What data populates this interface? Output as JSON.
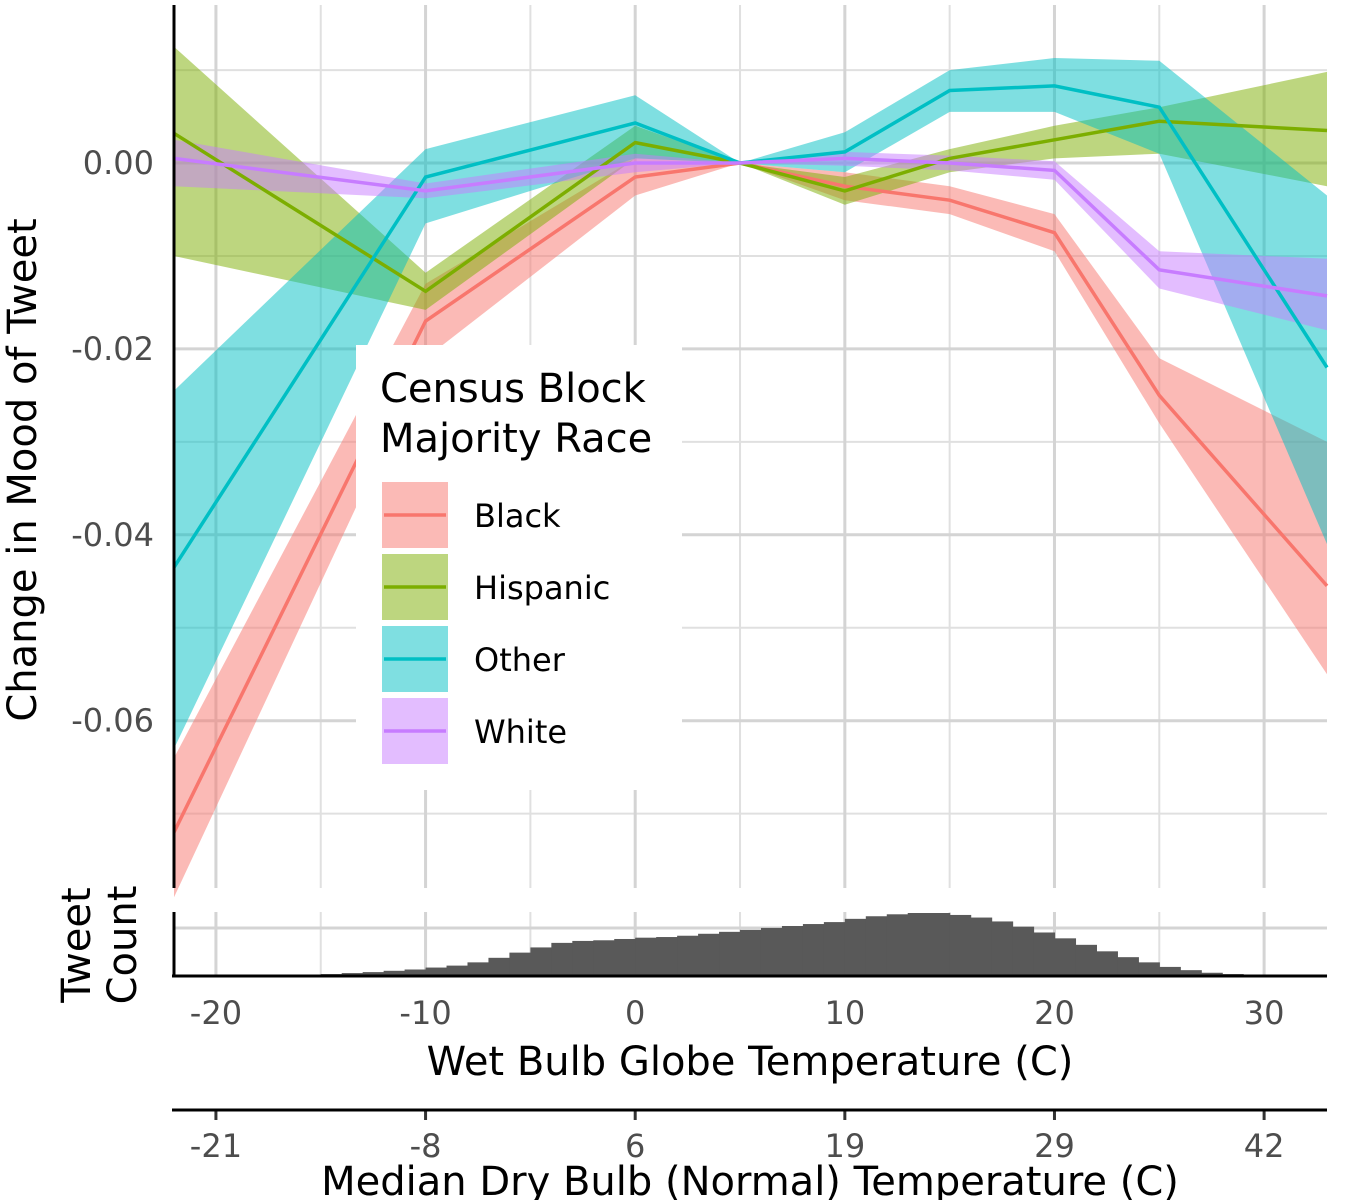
{
  "chart_data": {
    "type": "line",
    "xlabel": "Wet Bulb Globe Temperature (C)",
    "ylabel": "Change in Mood of Tweet",
    "secondary_xlabel": "Median Dry Bulb (Normal) Temperature (C)",
    "xlim": [
      -22,
      33
    ],
    "ylim": [
      -0.078,
      0.017
    ],
    "grid": true,
    "x_ticks": [
      -20,
      -10,
      0,
      10,
      20,
      30
    ],
    "x_tick_labels": [
      "-20",
      "-10",
      "0",
      "10",
      "20",
      "30"
    ],
    "y_ticks": [
      0,
      -0.02,
      -0.04,
      -0.06
    ],
    "y_tick_labels": [
      "0.00",
      "-0.02",
      "-0.04",
      "-0.06"
    ],
    "secondary_x_ticks": [
      -20,
      -10,
      0,
      10,
      20,
      30
    ],
    "secondary_x_tick_labels": [
      "-21",
      "-8",
      "6",
      "19",
      "29",
      "42"
    ],
    "x": [
      -22,
      -10,
      0,
      5,
      10,
      15,
      20,
      25,
      33
    ],
    "legend": {
      "title_lines": [
        "Census Block",
        "Majority Race"
      ],
      "placement": "inside-center-left"
    },
    "series": [
      {
        "name": "Black",
        "color": "#F8766D",
        "values": [
          -0.072,
          -0.017,
          -0.0015,
          0,
          -0.0025,
          -0.004,
          -0.0075,
          -0.025,
          -0.0455
        ],
        "lower": [
          -0.079,
          -0.021,
          -0.0035,
          0,
          -0.004,
          -0.0055,
          -0.0095,
          -0.028,
          -0.055
        ],
        "upper": [
          -0.064,
          -0.013,
          0.0005,
          0,
          -0.001,
          -0.0025,
          -0.0055,
          -0.021,
          -0.03
        ]
      },
      {
        "name": "Hispanic",
        "color": "#7CAE00",
        "values": [
          0.0032,
          -0.0138,
          0.0022,
          0,
          -0.003,
          0.0005,
          0.0025,
          0.0045,
          0.0035
        ],
        "lower": [
          -0.01,
          -0.0158,
          0.0005,
          0,
          -0.0045,
          -0.001,
          0.0005,
          0.001,
          -0.0025
        ],
        "upper": [
          0.0125,
          -0.0118,
          0.004,
          0,
          -0.0015,
          0.0015,
          0.004,
          0.006,
          0.0098
        ]
      },
      {
        "name": "Other",
        "color": "#00BFC4",
        "values": [
          -0.0435,
          -0.0015,
          0.0043,
          0,
          0.0012,
          0.0078,
          0.0083,
          0.006,
          -0.022
        ],
        "lower": [
          -0.063,
          -0.0065,
          0.0005,
          0,
          -0.001,
          0.0055,
          0.0055,
          0.001,
          -0.041
        ],
        "upper": [
          -0.0245,
          0.0015,
          0.0073,
          0,
          0.0033,
          0.01,
          0.0113,
          0.011,
          -0.0035
        ]
      },
      {
        "name": "White",
        "color": "#C77CFF",
        "values": [
          0.0005,
          -0.003,
          0,
          0,
          0.0005,
          0,
          -0.0008,
          -0.0115,
          -0.0143
        ],
        "lower": [
          -0.0025,
          -0.0038,
          -0.001,
          0,
          -0.0003,
          -0.0008,
          -0.0018,
          -0.0135,
          -0.018
        ],
        "upper": [
          0.0025,
          -0.0022,
          0.001,
          0,
          0.0012,
          0.0008,
          0.0002,
          -0.0095,
          -0.0103
        ]
      }
    ],
    "histogram": {
      "label_lines": [
        "Tweet",
        "Count"
      ],
      "color": "#595959",
      "bin_width": 1,
      "bin_starts": [
        -22,
        -21,
        -20,
        -19,
        -18,
        -17,
        -16,
        -15,
        -14,
        -13,
        -12,
        -11,
        -10,
        -9,
        -8,
        -7,
        -6,
        -5,
        -4,
        -3,
        -2,
        -1,
        0,
        1,
        2,
        3,
        4,
        5,
        6,
        7,
        8,
        9,
        10,
        11,
        12,
        13,
        14,
        15,
        16,
        17,
        18,
        19,
        20,
        21,
        22,
        23,
        24,
        25,
        26,
        27,
        28,
        29,
        30,
        31,
        32
      ],
      "values": [
        0,
        0,
        0,
        0.003,
        0.005,
        0.008,
        0.015,
        0.03,
        0.045,
        0.06,
        0.08,
        0.1,
        0.13,
        0.16,
        0.21,
        0.28,
        0.36,
        0.44,
        0.51,
        0.54,
        0.55,
        0.57,
        0.59,
        0.6,
        0.62,
        0.65,
        0.68,
        0.71,
        0.74,
        0.77,
        0.8,
        0.83,
        0.88,
        0.92,
        0.95,
        0.97,
        0.97,
        0.94,
        0.9,
        0.84,
        0.76,
        0.67,
        0.58,
        0.48,
        0.38,
        0.29,
        0.21,
        0.14,
        0.09,
        0.05,
        0.03,
        0.01,
        0.005,
        0.002,
        0.001
      ]
    }
  }
}
